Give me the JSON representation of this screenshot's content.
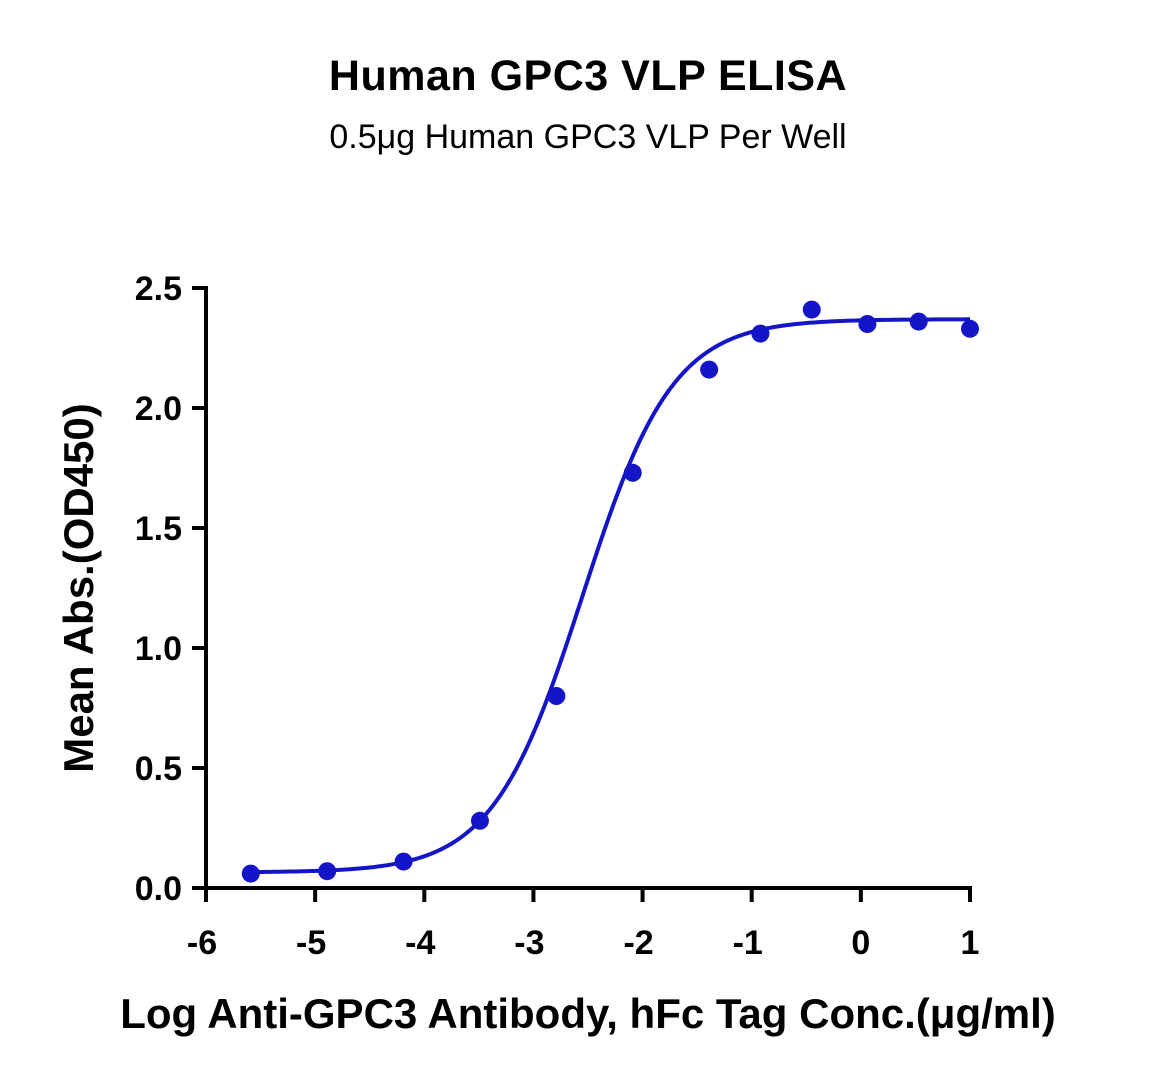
{
  "chart_data": {
    "type": "scatter",
    "title": "Human GPC3 VLP ELISA",
    "subtitle": "0.5μg Human GPC3 VLP Per Well",
    "xlabel": "Log Anti-GPC3 Antibody, hFc Tag Conc.(μg/ml)",
    "ylabel": "Mean Abs.(OD450)",
    "xlim": [
      -6,
      1
    ],
    "ylim": [
      0,
      2.5
    ],
    "x_ticks": [
      "-6",
      "-5",
      "-4",
      "-3",
      "-2",
      "-1",
      "0",
      "1"
    ],
    "y_ticks": [
      "0.0",
      "0.5",
      "1.0",
      "1.5",
      "2.0",
      "2.5"
    ],
    "grid": false,
    "color": "#1515c8",
    "series": [
      {
        "points": [
          {
            "x": -5.59,
            "y": 0.06
          },
          {
            "x": -4.89,
            "y": 0.07
          },
          {
            "x": -4.19,
            "y": 0.11
          },
          {
            "x": -3.49,
            "y": 0.28
          },
          {
            "x": -2.79,
            "y": 0.8
          },
          {
            "x": -2.09,
            "y": 1.73
          },
          {
            "x": -1.39,
            "y": 2.16
          },
          {
            "x": -0.92,
            "y": 2.31
          },
          {
            "x": -0.45,
            "y": 2.41
          },
          {
            "x": 0.06,
            "y": 2.35
          },
          {
            "x": 0.53,
            "y": 2.36
          },
          {
            "x": 1.0,
            "y": 2.33
          }
        ],
        "fit": {
          "model": "four-parameter logistic",
          "bottom": 0.065,
          "top": 2.37,
          "log_ec50": -2.55,
          "hill_slope": 1.05
        }
      }
    ]
  }
}
